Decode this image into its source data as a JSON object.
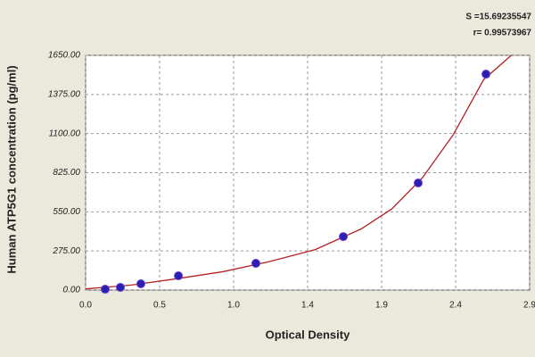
{
  "chart_data": {
    "type": "scatter",
    "stats": [
      "S =15.69235547",
      "r= 0.99573967"
    ],
    "x_label": "Optical Density",
    "y_label": "Human ATP5G1 concentration (pg/ml)",
    "x": [
      0.128,
      0.227,
      0.361,
      0.606,
      1.112,
      1.683,
      2.172,
      2.615
    ],
    "values": [
      6,
      19,
      44,
      100,
      188,
      376,
      753,
      1518
    ],
    "color": "#2a1fb0",
    "curve": {
      "x": [
        0,
        0.3,
        0.6,
        0.9,
        1.2,
        1.5,
        1.8,
        2.0,
        2.2,
        2.4,
        2.6,
        2.78
      ],
      "values": [
        8,
        35,
        80,
        130,
        200,
        285,
        430,
        570,
        790,
        1090,
        1480,
        1650
      ],
      "color": "#b32222"
    },
    "xlim": [
      0,
      2.9
    ],
    "ylim": [
      0,
      1650
    ],
    "xticks": [
      {
        "value": 0,
        "label": "0.0"
      },
      {
        "value": 0.4833,
        "label": "0.5"
      },
      {
        "value": 0.9667,
        "label": "1.0"
      },
      {
        "value": 1.45,
        "label": "1.4"
      },
      {
        "value": 1.9333,
        "label": "1.9"
      },
      {
        "value": 2.4167,
        "label": "2.4"
      },
      {
        "value": 2.9,
        "label": "2.9"
      }
    ],
    "yticks": [
      {
        "value": 0,
        "label": "0.00"
      },
      {
        "value": 275,
        "label": "275.00"
      },
      {
        "value": 550,
        "label": "550.00"
      },
      {
        "value": 825,
        "label": "825.00"
      },
      {
        "value": 1100,
        "label": "1100.00"
      },
      {
        "value": 1375,
        "label": "1375.00"
      },
      {
        "value": 1650,
        "label": "1650.00"
      }
    ],
    "grid": true
  }
}
